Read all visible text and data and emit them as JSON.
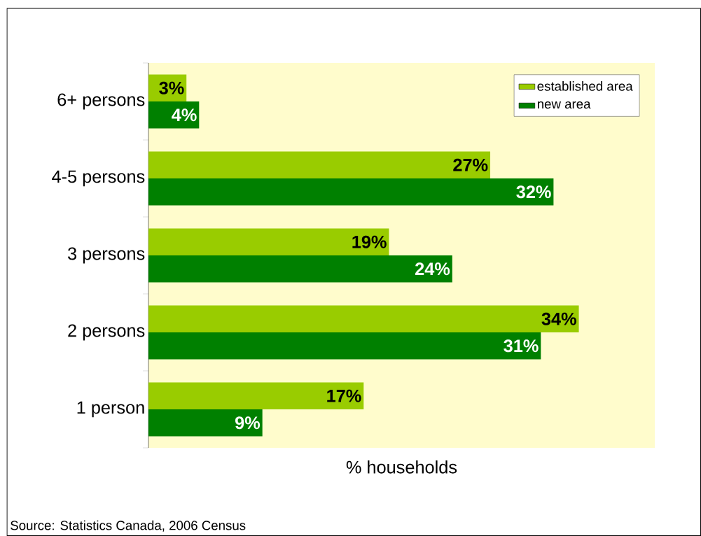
{
  "chart_data": {
    "type": "bar",
    "orientation": "horizontal",
    "xlabel": "% households",
    "categories": [
      "6+ persons",
      "4-5 persons",
      "3 persons",
      "2 persons",
      "1 person"
    ],
    "series": [
      {
        "name": "established area",
        "color": "#99cc00",
        "values": [
          3,
          27,
          19,
          34,
          17
        ],
        "value_labels": [
          "3%",
          "27%",
          "19%",
          "34%",
          "17%"
        ]
      },
      {
        "name": "new  area",
        "color": "#008000",
        "values": [
          4,
          32,
          24,
          31,
          9
        ],
        "value_labels": [
          "4%",
          "32%",
          "24%",
          "31%",
          "9%"
        ]
      }
    ],
    "xlim": [
      0,
      40
    ],
    "legend": "top right",
    "annotations": [
      "Source: Statistics Canada, 2006 Census"
    ]
  }
}
